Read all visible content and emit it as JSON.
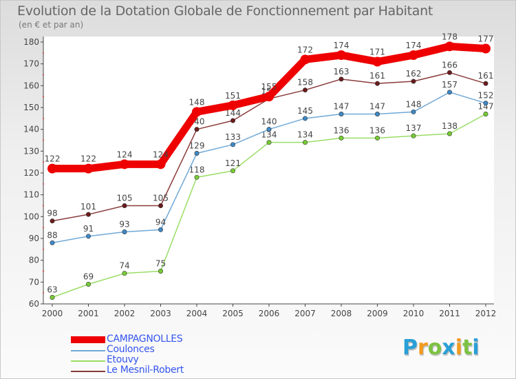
{
  "header": {
    "title": "Evolution de la Dotation Globale de Fonctionnement par Habitant",
    "subtitle": "(en € et par an)"
  },
  "chart_data": {
    "type": "line",
    "title": "Evolution de la Dotation Globale de Fonctionnement par Habitant",
    "subtitle": "(en € et par an)",
    "xlabel": "",
    "ylabel": "",
    "ylim": [
      60,
      180
    ],
    "y_ticks": [
      60,
      70,
      80,
      90,
      100,
      110,
      120,
      130,
      140,
      150,
      160,
      170,
      180
    ],
    "categories": [
      "2000",
      "2001",
      "2002",
      "2003",
      "2004",
      "2005",
      "2006",
      "2007",
      "2008",
      "2009",
      "2010",
      "2011",
      "2012"
    ],
    "legend_position": "bottom-left",
    "series": [
      {
        "name": "Etouvy",
        "color": "#99dd66",
        "marker": "#77cc33",
        "values": [
          63,
          69,
          74,
          75,
          118,
          121,
          134,
          134,
          136,
          136,
          137,
          138,
          147
        ]
      },
      {
        "name": "Coulonces",
        "color": "#6fa8d6",
        "marker": "#3f88c5",
        "values": [
          88,
          91,
          93,
          94,
          129,
          133,
          140,
          145,
          147,
          147,
          148,
          157,
          152
        ]
      },
      {
        "name": "Le Mesnil-Robert",
        "color": "#8a3a3a",
        "marker": "#6b1b1b",
        "values": [
          98,
          101,
          105,
          105,
          140,
          144,
          154,
          158,
          163,
          161,
          162,
          166,
          161
        ]
      },
      {
        "name": "CAMPAGNOLLES",
        "color": "#ee0000",
        "marker": "#ee0000",
        "values": [
          122,
          122,
          124,
          124,
          148,
          151,
          155,
          172,
          174,
          171,
          174,
          178,
          177
        ]
      }
    ],
    "legend": [
      {
        "name": "CAMPAGNOLLES",
        "color": "#ee0000",
        "label_color": "#3355ee"
      },
      {
        "name": "Coulonces",
        "color": "#6fa8d6",
        "label_color": "#3355ee"
      },
      {
        "name": "Etouvy",
        "color": "#99dd66",
        "label_color": "#3355ee"
      },
      {
        "name": "Le Mesnil-Robert",
        "color": "#8a3a3a",
        "label_color": "#3355ee"
      }
    ]
  },
  "logo": {
    "letters": [
      "P",
      "r",
      "o",
      "x",
      "i",
      "t",
      "i"
    ],
    "colors": [
      "#2a9fd6",
      "#f39a1e",
      "#7cc242",
      "#2a9fd6",
      "#f39a1e",
      "#7cc242",
      "#2a9fd6"
    ]
  }
}
